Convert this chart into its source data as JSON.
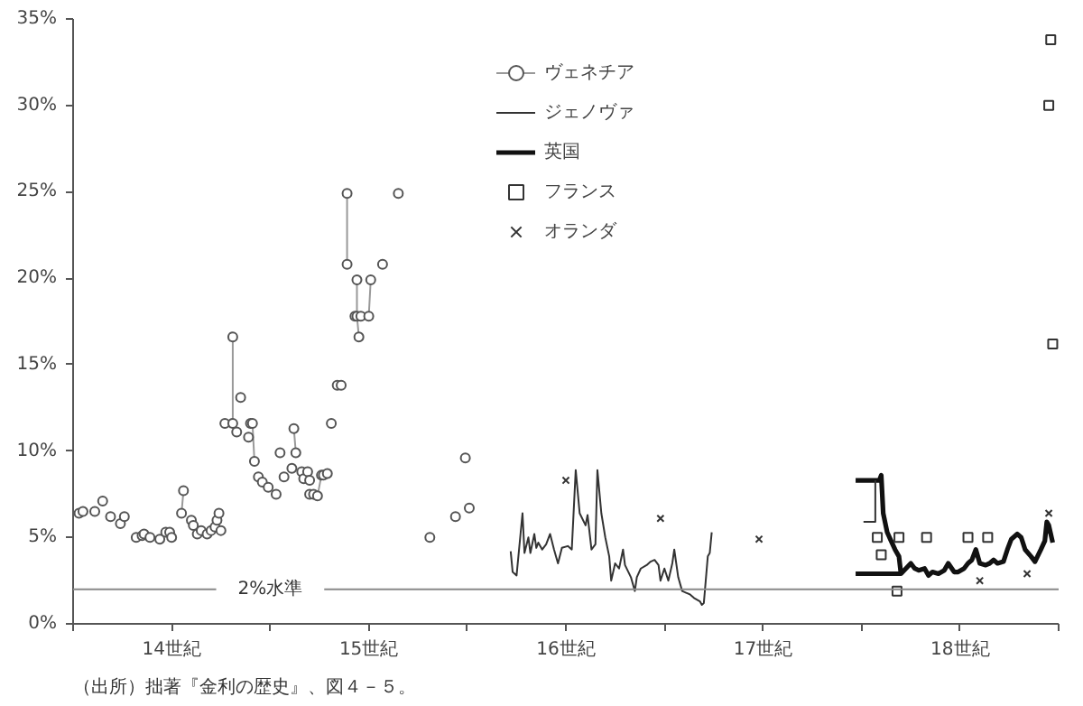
{
  "chart_data": {
    "type": "line",
    "xlim": [
      13.5,
      18.5
    ],
    "ylim": [
      0,
      35
    ],
    "xticks": [
      {
        "value": 13.5,
        "label": null
      },
      {
        "value": 14,
        "label": "14世紀"
      },
      {
        "value": 14.5,
        "label": null
      },
      {
        "value": 15,
        "label": "15世紀"
      },
      {
        "value": 15.5,
        "label": null
      },
      {
        "value": 16,
        "label": "16世紀"
      },
      {
        "value": 16.5,
        "label": null
      },
      {
        "value": 17,
        "label": "17世紀"
      },
      {
        "value": 17.5,
        "label": null
      },
      {
        "value": 18,
        "label": "18世紀"
      },
      {
        "value": 18.5,
        "label": null
      }
    ],
    "yticks": [
      {
        "value": 0,
        "label": "0%"
      },
      {
        "value": 5,
        "label": "5%"
      },
      {
        "value": 10,
        "label": "10%"
      },
      {
        "value": 15,
        "label": "15%"
      },
      {
        "value": 20,
        "label": "20%"
      },
      {
        "value": 25,
        "label": "25%"
      },
      {
        "value": 30,
        "label": "30%"
      },
      {
        "value": 35,
        "label": "35%"
      }
    ],
    "grid": false,
    "legend": "top",
    "series": [
      {
        "name": "ヴェネチア",
        "marker": "circle",
        "color": "#555555",
        "x": [
          13.53,
          null,
          13.55,
          null,
          13.61,
          null,
          13.65,
          null,
          13.69,
          null,
          13.74,
          null,
          13.76,
          null,
          13.82,
          null,
          13.85,
          null,
          13.86,
          null,
          13.89,
          null,
          13.94,
          null,
          13.97,
          null,
          13.99,
          null,
          14.0,
          null,
          14.05,
          14.06,
          null,
          14.1,
          null,
          14.11,
          null,
          14.13,
          null,
          14.15,
          null,
          14.18,
          null,
          14.2,
          null,
          14.22,
          null,
          14.23,
          null,
          14.24,
          null,
          14.25,
          null,
          14.27,
          null,
          14.31,
          14.31,
          null,
          14.33,
          null,
          14.35,
          null,
          14.39,
          null,
          14.4,
          null,
          14.41,
          14.42,
          null,
          14.44,
          null,
          14.46,
          null,
          14.49,
          null,
          14.53,
          null,
          14.55,
          null,
          14.57,
          null,
          14.61,
          null,
          14.62,
          14.63,
          null,
          14.66,
          null,
          14.67,
          null,
          14.69,
          null,
          14.7,
          null,
          14.7,
          null,
          14.72,
          null,
          14.74,
          14.76,
          null,
          14.77,
          null,
          14.79,
          null,
          14.81,
          null,
          14.84,
          null,
          14.86,
          null,
          14.89,
          14.89,
          null,
          14.93,
          null,
          14.94,
          14.94,
          14.95,
          null,
          14.96,
          null,
          15.0,
          15.01,
          null,
          15.07,
          null,
          15.15,
          null,
          15.31,
          null,
          15.44,
          null,
          15.49,
          null,
          15.51
        ],
        "values": [
          6.4,
          null,
          6.5,
          null,
          6.5,
          null,
          7.1,
          null,
          6.2,
          null,
          5.8,
          null,
          6.2,
          null,
          5.0,
          null,
          5.1,
          null,
          5.2,
          null,
          5.0,
          null,
          4.9,
          null,
          5.3,
          null,
          5.3,
          null,
          5.0,
          null,
          6.4,
          7.7,
          null,
          6.0,
          null,
          5.7,
          null,
          5.2,
          null,
          5.4,
          null,
          5.2,
          null,
          5.4,
          null,
          5.6,
          null,
          6.0,
          null,
          6.4,
          null,
          5.4,
          null,
          11.6,
          null,
          11.6,
          16.6,
          null,
          11.1,
          null,
          13.1,
          null,
          10.8,
          null,
          11.6,
          null,
          11.6,
          9.4,
          null,
          8.5,
          null,
          8.2,
          null,
          7.9,
          null,
          7.5,
          null,
          9.9,
          null,
          8.5,
          null,
          9.0,
          null,
          11.3,
          9.9,
          null,
          8.8,
          null,
          8.4,
          null,
          8.8,
          null,
          8.3,
          null,
          7.5,
          null,
          7.5,
          null,
          7.4,
          8.6,
          null,
          8.6,
          null,
          8.7,
          null,
          11.6,
          null,
          13.8,
          null,
          13.8,
          null,
          20.8,
          24.9,
          null,
          17.8,
          null,
          19.9,
          17.8,
          16.6,
          null,
          17.8,
          null,
          17.8,
          19.9,
          null,
          20.8,
          null,
          24.9,
          null,
          5.0,
          null,
          6.2,
          null,
          9.6,
          null,
          6.7
        ]
      },
      {
        "name": "ジェノヴァ",
        "color": "#333333",
        "x": [
          15.72,
          15.73,
          15.75,
          15.78,
          15.79,
          15.81,
          15.82,
          15.84,
          15.85,
          15.86,
          15.88,
          15.9,
          15.92,
          15.94,
          15.96,
          15.98,
          16.01,
          16.03,
          16.05,
          16.07,
          16.1,
          16.11,
          16.13,
          16.15,
          16.16,
          16.18,
          16.2,
          16.22,
          16.23,
          16.25,
          16.27,
          16.29,
          16.3,
          16.33,
          16.35,
          16.36,
          16.38,
          16.41,
          16.43,
          16.45,
          16.47,
          16.48,
          16.5,
          16.52,
          16.54,
          16.55,
          16.57,
          16.59,
          16.61,
          16.63,
          16.65,
          16.68,
          16.69,
          16.7,
          16.72,
          16.73,
          16.74
        ],
        "values": [
          4.2,
          3.0,
          2.8,
          6.4,
          4.1,
          5.0,
          4.1,
          5.2,
          4.4,
          4.7,
          4.3,
          4.6,
          5.2,
          4.3,
          3.5,
          4.4,
          4.5,
          4.3,
          8.9,
          6.4,
          5.7,
          6.3,
          4.3,
          4.6,
          8.9,
          6.4,
          5.0,
          3.9,
          2.5,
          3.5,
          3.2,
          4.3,
          3.4,
          2.7,
          1.9,
          2.7,
          3.2,
          3.4,
          3.6,
          3.7,
          3.4,
          2.5,
          3.2,
          2.5,
          3.5,
          4.3,
          2.7,
          1.9,
          1.8,
          1.7,
          1.5,
          1.3,
          1.1,
          1.2,
          3.9,
          4.1,
          5.3
        ]
      },
      {
        "name": "英国",
        "color": "#111111",
        "x": [
          17.47,
          17.59,
          17.6,
          17.61,
          17.63,
          17.65,
          17.67,
          17.69,
          17.7,
          null,
          17.47,
          17.7,
          17.75,
          17.77,
          17.79,
          17.82,
          17.84,
          17.86,
          17.89,
          17.92,
          17.94,
          17.97,
          17.99,
          18.02,
          18.04,
          18.06,
          18.08,
          18.1,
          18.13,
          18.15,
          18.17,
          18.19,
          18.22,
          18.24,
          18.26,
          18.29,
          18.31,
          18.33,
          18.36,
          18.38,
          18.41,
          18.43,
          18.44,
          18.45,
          18.47
        ],
        "values": [
          8.3,
          8.3,
          8.6,
          6.4,
          5.3,
          4.8,
          4.3,
          3.9,
          2.9,
          null,
          2.9,
          2.9,
          3.5,
          3.2,
          3.1,
          3.2,
          2.8,
          3.0,
          2.9,
          3.1,
          3.5,
          3.0,
          3.0,
          3.2,
          3.5,
          3.7,
          4.3,
          3.5,
          3.4,
          3.5,
          3.7,
          3.5,
          3.6,
          4.3,
          4.9,
          5.2,
          5.0,
          4.3,
          3.9,
          3.6,
          4.3,
          4.8,
          5.9,
          5.7,
          4.7
        ]
      },
      {
        "color": "#333333",
        "x": [
          17.51,
          17.57,
          17.57
        ],
        "values": [
          5.9,
          5.9,
          8.3
        ]
      },
      {
        "name": "フランス",
        "type": "scatter",
        "marker": "square",
        "color": "#333333",
        "x": [
          17.58,
          17.6,
          17.68,
          17.69,
          17.83,
          18.04,
          18.14,
          18.45,
          18.46,
          18.47
        ],
        "values": [
          5.0,
          4.0,
          1.9,
          5.0,
          5.0,
          5.0,
          5.0,
          30.0,
          33.8,
          16.2
        ]
      },
      {
        "name": "オランダ",
        "type": "scatter",
        "marker": "cross",
        "color": "#333333",
        "x": [
          16.0,
          16.48,
          16.98,
          18.1,
          18.34,
          18.45
        ],
        "values": [
          8.3,
          6.1,
          4.9,
          2.5,
          2.9,
          6.4
        ]
      }
    ],
    "ref_lines": [
      {
        "axis": "y",
        "value": 2,
        "label": "2%水準",
        "color": "#888888"
      }
    ],
    "annotations": [
      "（出所）拙著『金利の歴史』、図４－５。"
    ]
  }
}
